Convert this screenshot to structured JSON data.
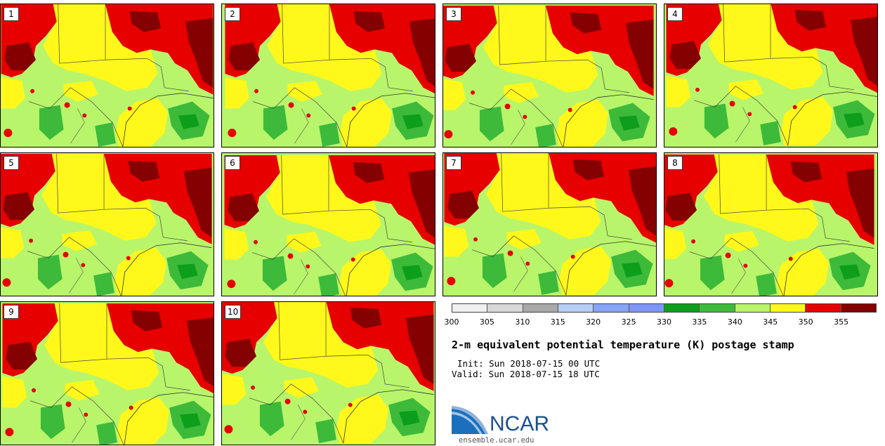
{
  "stamps": [
    {
      "label": "1"
    },
    {
      "label": "2"
    },
    {
      "label": "3"
    },
    {
      "label": "4"
    },
    {
      "label": "5"
    },
    {
      "label": "6"
    },
    {
      "label": "7"
    },
    {
      "label": "8"
    },
    {
      "label": "9"
    },
    {
      "label": "10"
    }
  ],
  "colorbar": {
    "colors": [
      "#f0f0f0",
      "#d8d8d8",
      "#a9a9a9",
      "#b6cdf5",
      "#86a3f5",
      "#7e96f5",
      "#0d9e1b",
      "#3dba3a",
      "#b8f56a",
      "#fff81a",
      "#e60000",
      "#850000"
    ],
    "ticks": [
      "300",
      "305",
      "310",
      "315",
      "320",
      "325",
      "330",
      "335",
      "340",
      "345",
      "350",
      "355"
    ]
  },
  "title": "2-m equivalent potential temperature (K) postage stamp",
  "init": "Init: Sun 2018-07-15 00 UTC",
  "valid": "Valid: Sun 2018-07-15 18 UTC",
  "logo": {
    "text": "NCAR",
    "url": "ensemble.ucar.edu"
  }
}
